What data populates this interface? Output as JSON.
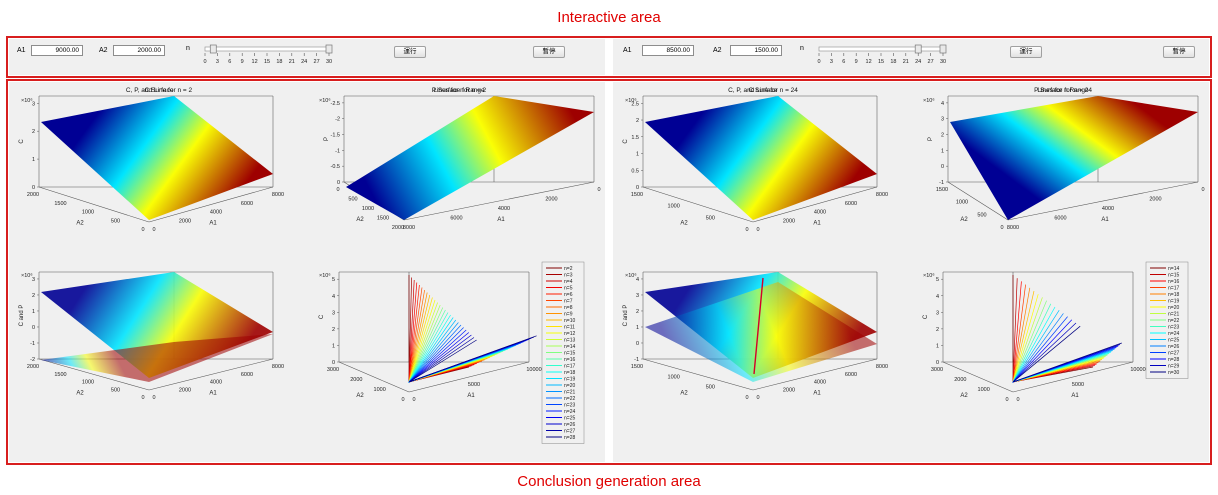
{
  "header": {
    "title": "Interactive area"
  },
  "footer": {
    "title": "Conclusion generation area"
  },
  "controls": [
    {
      "a1_label": "A1",
      "a1_value": "9000.00",
      "a2_label": "A2",
      "a2_value": "2000.00",
      "n_label": "n",
      "n_value": 2,
      "n_ticks": [
        "0",
        "3",
        "6",
        "9",
        "12",
        "15",
        "18",
        "21",
        "24",
        "27",
        "30"
      ],
      "button1": "運行",
      "button2": "暫停"
    },
    {
      "a1_label": "A1",
      "a1_value": "8500.00",
      "a2_label": "A2",
      "a2_value": "1500.00",
      "n_label": "n",
      "n_value": 24,
      "n_ticks": [
        "0",
        "3",
        "6",
        "9",
        "12",
        "15",
        "18",
        "21",
        "24",
        "27",
        "30"
      ],
      "button1": "運行",
      "button2": "暫停"
    }
  ],
  "panels": [
    {
      "c_surface": {
        "title": "C Surface",
        "exp": "×10⁶",
        "zlabel": "C",
        "xlabel": "A2",
        "ylabel": "A1",
        "zticks": [
          "0",
          "1",
          "2",
          "3"
        ],
        "xticks": [
          "2000",
          "1500",
          "1000",
          "500",
          "0"
        ],
        "yticks": [
          "0",
          "2000",
          "4000",
          "6000",
          "8000"
        ]
      },
      "p_surface": {
        "title": "P Surface for n = 2",
        "exp": "×10⁶",
        "zlabel": "P",
        "xlabel": "A2",
        "ylabel": "A1",
        "zticks": [
          "0",
          "-0.5",
          "-1",
          "-1.5",
          "-2",
          "-2.5"
        ],
        "yticks": [
          "8000",
          "6000",
          "4000",
          "2000",
          "0"
        ],
        "xticks": [
          "0",
          "500",
          "1000",
          "1500",
          "2000"
        ]
      },
      "cp_line": {
        "title": "C, P, and Line for n = 2",
        "exp": "×10⁶",
        "zlabel": "C and P",
        "xlabel": "A2",
        "ylabel": "A1",
        "zticks": [
          "-2",
          "-1",
          "0",
          "1",
          "2",
          "3"
        ],
        "xticks": [
          "2000",
          "1500",
          "1000",
          "500",
          "0"
        ],
        "yticks": [
          "0",
          "2000",
          "4000",
          "6000",
          "8000"
        ]
      },
      "lines": {
        "title": "Lines for n Range",
        "exp": "×10⁶",
        "zlabel": "C",
        "xlabel": "A2",
        "ylabel": "A1",
        "zticks": [
          "0",
          "1",
          "2",
          "3",
          "4",
          "5"
        ],
        "xticks": [
          "3000",
          "2000",
          "1000",
          "0"
        ],
        "yticks": [
          "0",
          "5000",
          "10000"
        ],
        "legend": [
          "n=2",
          "n=3",
          "n=4",
          "n=5",
          "n=6",
          "n=7",
          "n=8",
          "n=9",
          "n=10",
          "n=11",
          "n=12",
          "n=13",
          "n=14",
          "n=15",
          "n=16",
          "n=17",
          "n=18",
          "n=19",
          "n=20",
          "n=21",
          "n=22",
          "n=23",
          "n=24",
          "n=25",
          "n=26",
          "n=27",
          "n=28"
        ]
      }
    },
    {
      "c_surface": {
        "title": "C Surface",
        "exp": "×10⁶",
        "zlabel": "C",
        "xlabel": "A2",
        "ylabel": "A1",
        "zticks": [
          "0",
          "0.5",
          "1",
          "1.5",
          "2",
          "2.5"
        ],
        "xticks": [
          "1500",
          "1000",
          "500",
          "0"
        ],
        "yticks": [
          "0",
          "2000",
          "4000",
          "6000",
          "8000"
        ]
      },
      "p_surface": {
        "title": "P Surface for n = 24",
        "exp": "×10⁶",
        "zlabel": "P",
        "xlabel": "A2",
        "ylabel": "A1",
        "zticks": [
          "-1",
          "0",
          "1",
          "2",
          "3",
          "4"
        ],
        "yticks": [
          "8000",
          "6000",
          "4000",
          "2000",
          "0"
        ],
        "xticks": [
          "1500",
          "1000",
          "500",
          "0"
        ]
      },
      "cp_line": {
        "title": "C, P, and Line for n = 24",
        "exp": "×10⁶",
        "zlabel": "C and P",
        "xlabel": "A2",
        "ylabel": "A1",
        "zticks": [
          "-1",
          "0",
          "1",
          "2",
          "3",
          "4"
        ],
        "xticks": [
          "1500",
          "1000",
          "500",
          "0"
        ],
        "yticks": [
          "0",
          "2000",
          "4000",
          "6000",
          "8000"
        ]
      },
      "lines": {
        "title": "Lines for n Range",
        "exp": "×10⁶",
        "zlabel": "C",
        "xlabel": "A2",
        "ylabel": "A1",
        "zticks": [
          "0",
          "1",
          "2",
          "3",
          "4",
          "5"
        ],
        "xticks": [
          "3000",
          "2000",
          "1000",
          "0"
        ],
        "yticks": [
          "0",
          "5000",
          "10000"
        ],
        "legend": [
          "n=14",
          "n=15",
          "n=16",
          "n=17",
          "n=18",
          "n=19",
          "n=20",
          "n=21",
          "n=22",
          "n=23",
          "n=24",
          "n=25",
          "n=26",
          "n=27",
          "n=28",
          "n=29",
          "n=30"
        ]
      }
    }
  ]
}
